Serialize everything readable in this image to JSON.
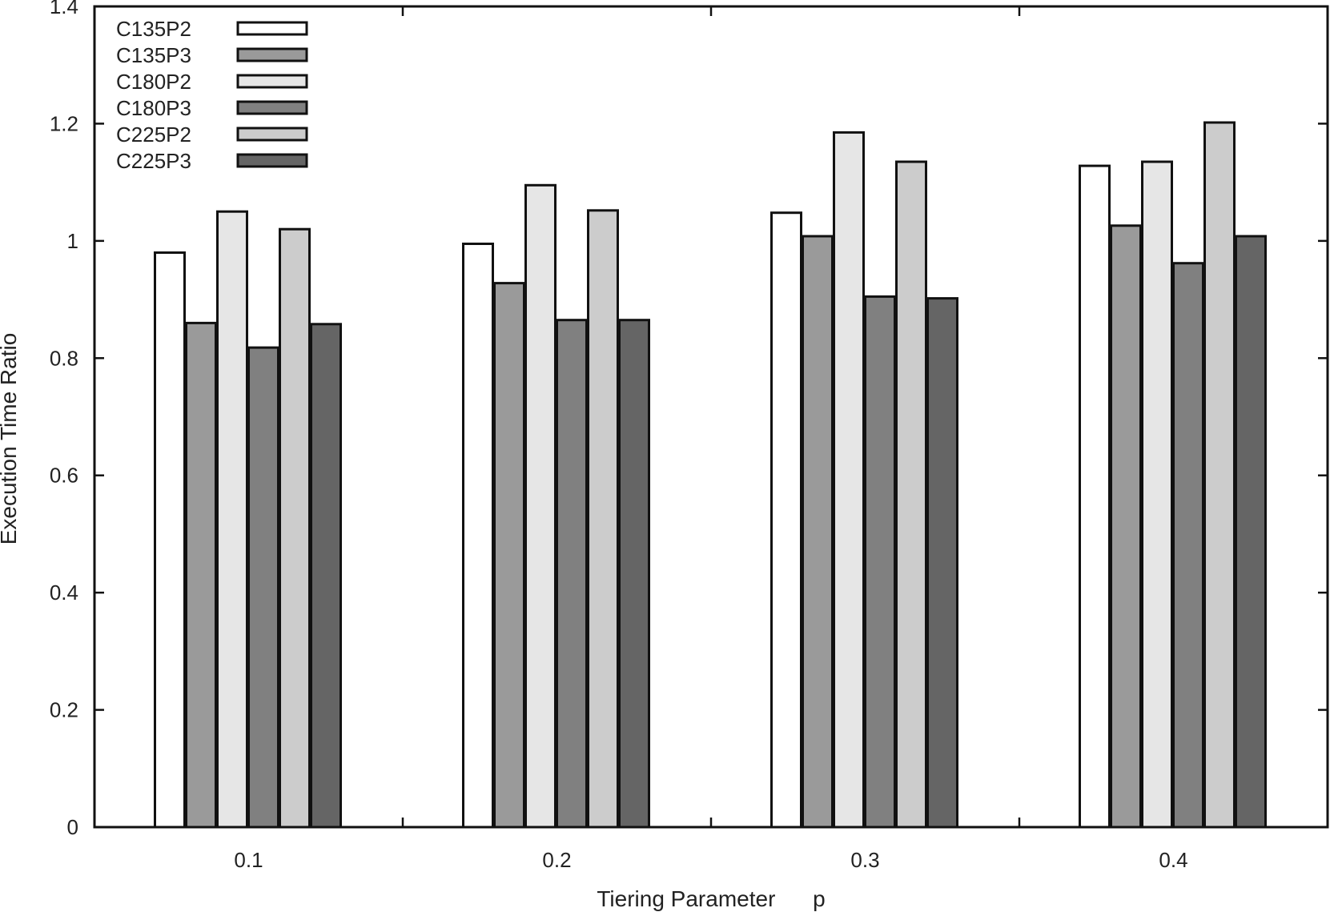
{
  "chart_data": {
    "type": "bar",
    "categories": [
      "0.1",
      "0.2",
      "0.3",
      "0.4"
    ],
    "series": [
      {
        "name": "C135P2",
        "color": "#ffffff",
        "values": [
          0.98,
          0.995,
          1.048,
          1.128
        ]
      },
      {
        "name": "C135P3",
        "color": "#9a9a9a",
        "values": [
          0.86,
          0.928,
          1.008,
          1.026
        ]
      },
      {
        "name": "C180P2",
        "color": "#e6e6e6",
        "values": [
          1.05,
          1.095,
          1.185,
          1.135
        ]
      },
      {
        "name": "C180P3",
        "color": "#808080",
        "values": [
          0.818,
          0.865,
          0.905,
          0.962
        ]
      },
      {
        "name": "C225P2",
        "color": "#cccccc",
        "values": [
          1.02,
          1.052,
          1.135,
          1.202
        ]
      },
      {
        "name": "C225P3",
        "color": "#656565",
        "values": [
          0.858,
          0.865,
          0.902,
          1.008
        ]
      }
    ],
    "xlabel": "Tiering Parameter      p",
    "ylabel": "Execution Time Ratio",
    "ylim": [
      0,
      1.4
    ],
    "yticks": [
      "0",
      "0.2",
      "0.4",
      "0.6",
      "0.8",
      "1",
      "1.2",
      "1.4"
    ],
    "legend_position": "top-left",
    "grid": false
  }
}
